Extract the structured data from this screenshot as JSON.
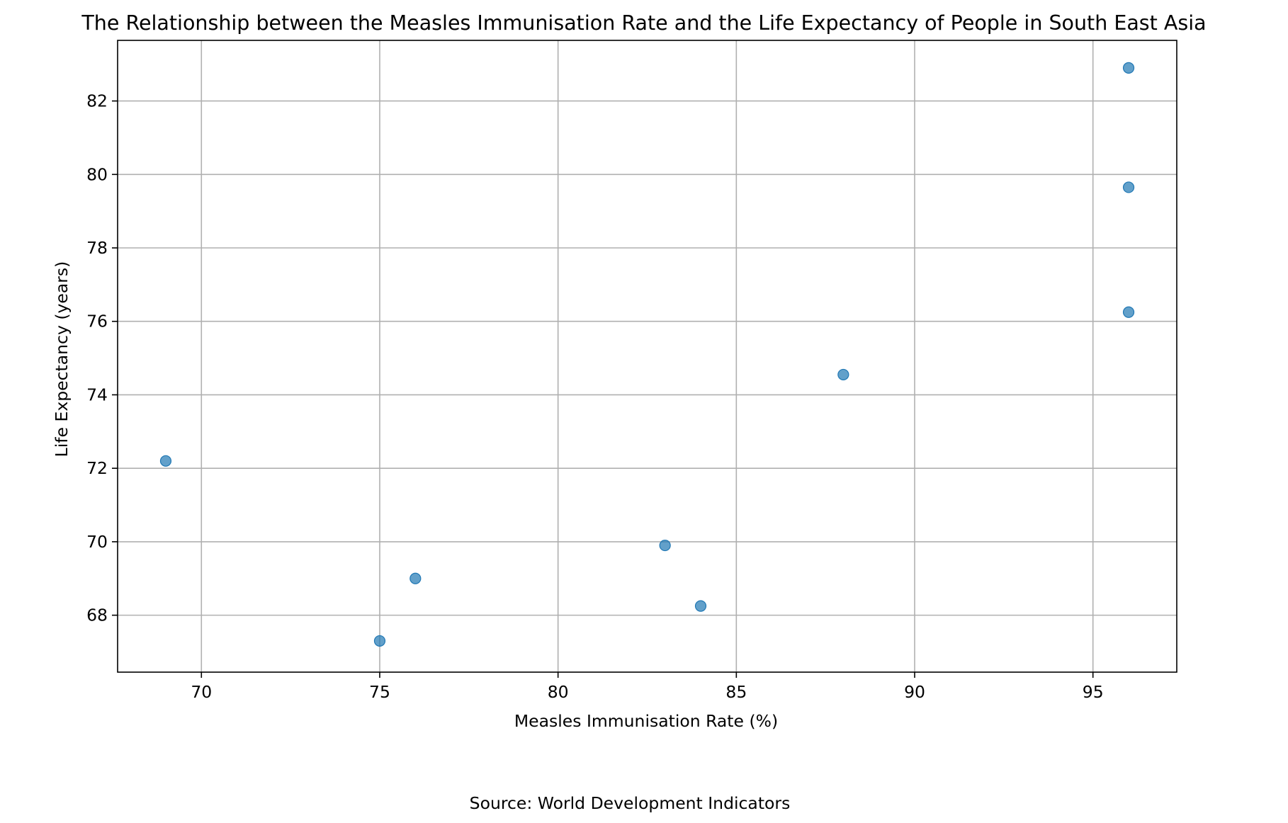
{
  "chart_data": {
    "type": "scatter",
    "title": "The Relationship between the Measles Immunisation Rate and the Life Expectancy of People in South East Asia",
    "xlabel": "Measles Immunisation Rate (%)",
    "ylabel": "Life Expectancy (years)",
    "source": "Source: World Development Indicators",
    "xlim": [
      67.65,
      97.35
    ],
    "ylim": [
      66.45,
      83.65
    ],
    "xticks": [
      70,
      75,
      80,
      85,
      90,
      95
    ],
    "yticks": [
      68,
      70,
      72,
      74,
      76,
      78,
      80,
      82
    ],
    "grid": true,
    "marker_color": "#1f77b4",
    "marker_alpha": 0.7,
    "points": [
      {
        "x": 69,
        "y": 72.2
      },
      {
        "x": 75,
        "y": 67.3
      },
      {
        "x": 76,
        "y": 69.0
      },
      {
        "x": 83,
        "y": 69.9
      },
      {
        "x": 84,
        "y": 68.25
      },
      {
        "x": 88,
        "y": 74.55
      },
      {
        "x": 96,
        "y": 76.25
      },
      {
        "x": 96,
        "y": 79.65
      },
      {
        "x": 96,
        "y": 82.9
      }
    ]
  }
}
